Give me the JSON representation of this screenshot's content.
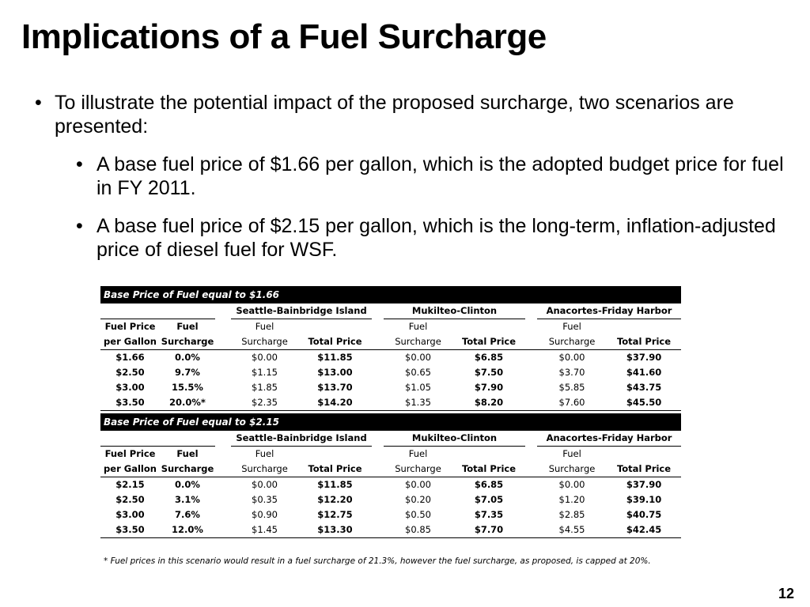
{
  "title": "Implications of a Fuel Surcharge",
  "bullets": {
    "main": "To illustrate the potential impact of the proposed surcharge, two scenarios are presented:",
    "sub": [
      "A base fuel price of $1.66 per gallon, which is the adopted budget price for fuel in FY 2011.",
      "A base fuel price of $2.15 per gallon, which is the long-term, inflation-adjusted price of diesel fuel for WSF."
    ]
  },
  "headers": {
    "routes": [
      "Seattle-Bainbridge Island",
      "Mukilteo-Clinton",
      "Anacortes-Friday Harbor"
    ],
    "fuel_price_l1": "Fuel Price",
    "fuel_price_l2": "per Gallon",
    "fuel_l1": "Fuel",
    "surcharge": "Surcharge",
    "total_price": "Total Price"
  },
  "tables": [
    {
      "band": "Base Price of Fuel equal to $1.66",
      "rows": [
        [
          "$1.66",
          "0.0%",
          "$0.00",
          "$11.85",
          "$0.00",
          "$6.85",
          "$0.00",
          "$37.90"
        ],
        [
          "$2.50",
          "9.7%",
          "$1.15",
          "$13.00",
          "$0.65",
          "$7.50",
          "$3.70",
          "$41.60"
        ],
        [
          "$3.00",
          "15.5%",
          "$1.85",
          "$13.70",
          "$1.05",
          "$7.90",
          "$5.85",
          "$43.75"
        ],
        [
          "$3.50",
          "20.0%*",
          "$2.35",
          "$14.20",
          "$1.35",
          "$8.20",
          "$7.60",
          "$45.50"
        ]
      ]
    },
    {
      "band": "Base Price of Fuel equal to $2.15",
      "rows": [
        [
          "$2.15",
          "0.0%",
          "$0.00",
          "$11.85",
          "$0.00",
          "$6.85",
          "$0.00",
          "$37.90"
        ],
        [
          "$2.50",
          "3.1%",
          "$0.35",
          "$12.20",
          "$0.20",
          "$7.05",
          "$1.20",
          "$39.10"
        ],
        [
          "$3.00",
          "7.6%",
          "$0.90",
          "$12.75",
          "$0.50",
          "$7.35",
          "$2.85",
          "$40.75"
        ],
        [
          "$3.50",
          "12.0%",
          "$1.45",
          "$13.30",
          "$0.85",
          "$7.70",
          "$4.55",
          "$42.45"
        ]
      ]
    }
  ],
  "footnote": "* Fuel prices in this scenario would result in a fuel surcharge of 21.3%, however the fuel surcharge, as proposed, is capped at 20%.",
  "page_number": "12"
}
